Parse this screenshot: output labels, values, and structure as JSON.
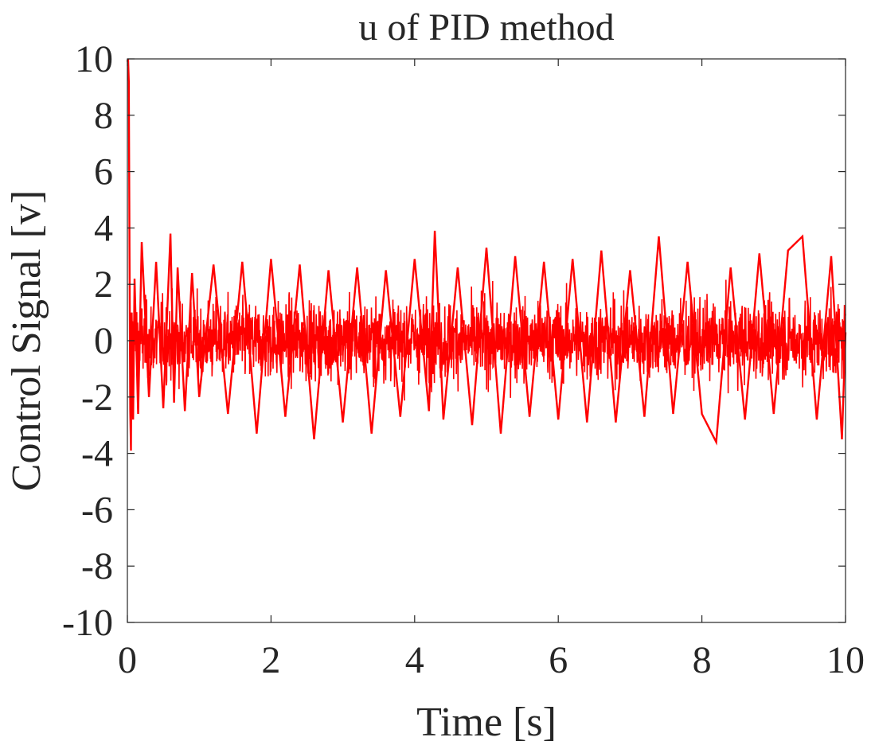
{
  "chart_data": {
    "type": "line",
    "title": "u of PID method",
    "xlabel": "Time [s]",
    "ylabel": "Control Signal [v]",
    "xlim": [
      0,
      10
    ],
    "ylim": [
      -10,
      10
    ],
    "x_ticks": [
      0,
      2,
      4,
      6,
      8,
      10
    ],
    "y_ticks": [
      -10,
      -8,
      -6,
      -4,
      -2,
      0,
      2,
      4,
      6,
      8,
      10
    ],
    "x_tick_labels": [
      "0",
      "2",
      "4",
      "6",
      "8",
      "10"
    ],
    "y_tick_labels": [
      "-10",
      "-8",
      "-6",
      "-4",
      "-2",
      "0",
      "2",
      "4",
      "6",
      "8",
      "10"
    ],
    "grid": false,
    "series": [
      {
        "color": "#ff0000",
        "x": [
          0,
          0.01,
          0.02,
          0.03,
          0.04,
          0.05,
          0.06,
          0.08,
          0.1,
          0.15,
          0.2,
          0.3,
          0.4,
          0.5,
          0.6,
          0.65,
          0.7,
          0.8,
          0.9,
          1.0,
          1.2,
          1.4,
          1.6,
          1.8,
          2.0,
          2.2,
          2.4,
          2.6,
          2.8,
          3.0,
          3.2,
          3.4,
          3.6,
          3.8,
          4.0,
          4.2,
          4.28,
          4.4,
          4.6,
          4.8,
          5.0,
          5.2,
          5.4,
          5.6,
          5.8,
          6.0,
          6.2,
          6.4,
          6.6,
          6.8,
          7.0,
          7.2,
          7.4,
          7.6,
          7.8,
          8.0,
          8.2,
          8.4,
          8.6,
          8.8,
          9.0,
          9.2,
          9.4,
          9.6,
          9.8,
          9.95,
          10.0
        ],
        "values": [
          9.9,
          10.0,
          9.2,
          3.0,
          -2.5,
          -3.9,
          1.0,
          -2.8,
          2.2,
          -2.6,
          3.5,
          -2.0,
          2.8,
          -2.4,
          3.8,
          -2.2,
          2.6,
          -2.5,
          2.4,
          -2.0,
          2.7,
          -2.6,
          2.8,
          -3.3,
          2.9,
          -2.7,
          2.7,
          -3.5,
          2.5,
          -2.9,
          2.6,
          -3.3,
          2.5,
          -2.7,
          2.9,
          -2.5,
          3.9,
          -2.8,
          2.6,
          -3.0,
          3.3,
          -3.3,
          3.0,
          -2.7,
          2.8,
          -2.8,
          2.9,
          -2.9,
          3.2,
          -2.9,
          2.5,
          -2.7,
          3.7,
          -2.6,
          2.8,
          -2.6,
          -3.6,
          2.6,
          -2.8,
          3.1,
          -2.6,
          3.2,
          3.7,
          -2.8,
          3.0,
          -3.5,
          0.3
        ]
      }
    ]
  }
}
